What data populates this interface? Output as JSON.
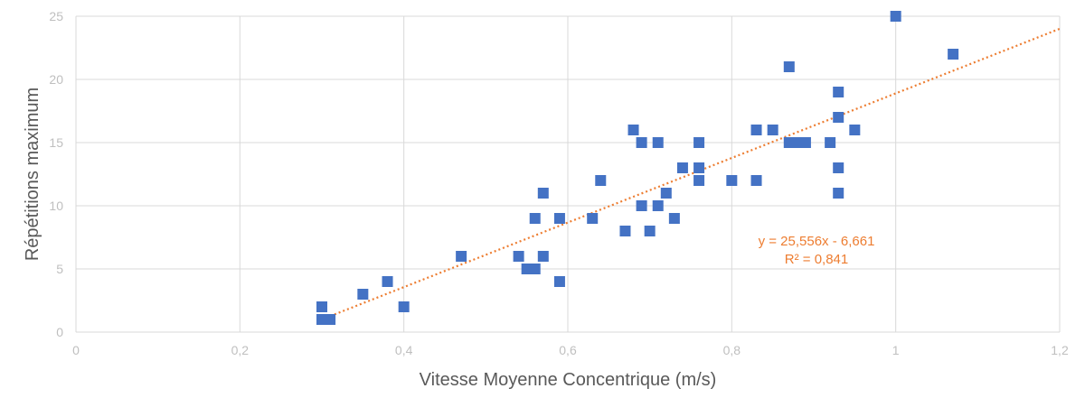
{
  "chart_data": {
    "type": "scatter",
    "title": "",
    "xlabel": "Vitesse Moyenne Concentrique (m/s)",
    "ylabel": "Répétitions maximum",
    "xlim": [
      0,
      1.2
    ],
    "ylim": [
      0,
      25
    ],
    "x_ticks": [
      {
        "value": 0,
        "label": "0"
      },
      {
        "value": 0.2,
        "label": "0,2"
      },
      {
        "value": 0.4,
        "label": "0,4"
      },
      {
        "value": 0.6,
        "label": "0,6"
      },
      {
        "value": 0.8,
        "label": "0,8"
      },
      {
        "value": 1.0,
        "label": "1"
      },
      {
        "value": 1.2,
        "label": "1,2"
      }
    ],
    "y_ticks": [
      {
        "value": 0,
        "label": "0"
      },
      {
        "value": 5,
        "label": "5"
      },
      {
        "value": 10,
        "label": "10"
      },
      {
        "value": 15,
        "label": "15"
      },
      {
        "value": 20,
        "label": "20"
      },
      {
        "value": 25,
        "label": "25"
      }
    ],
    "grid": true,
    "marker_color": "#4472c4",
    "trendline_color": "#ed7d31",
    "series": [
      {
        "points": [
          [
            0.3,
            2
          ],
          [
            0.3,
            1
          ],
          [
            0.31,
            1
          ],
          [
            0.35,
            3
          ],
          [
            0.38,
            4
          ],
          [
            0.4,
            2
          ],
          [
            0.47,
            6
          ],
          [
            0.54,
            6
          ],
          [
            0.55,
            5
          ],
          [
            0.56,
            5
          ],
          [
            0.56,
            9
          ],
          [
            0.57,
            11
          ],
          [
            0.57,
            6
          ],
          [
            0.59,
            9
          ],
          [
            0.59,
            4
          ],
          [
            0.63,
            9
          ],
          [
            0.64,
            12
          ],
          [
            0.67,
            8
          ],
          [
            0.68,
            16
          ],
          [
            0.69,
            15
          ],
          [
            0.69,
            10
          ],
          [
            0.7,
            8
          ],
          [
            0.71,
            15
          ],
          [
            0.71,
            10
          ],
          [
            0.72,
            11
          ],
          [
            0.73,
            9
          ],
          [
            0.74,
            13
          ],
          [
            0.76,
            15
          ],
          [
            0.76,
            13
          ],
          [
            0.76,
            12
          ],
          [
            0.8,
            12
          ],
          [
            0.83,
            16
          ],
          [
            0.83,
            12
          ],
          [
            0.85,
            16
          ],
          [
            0.87,
            21
          ],
          [
            0.87,
            15
          ],
          [
            0.88,
            15
          ],
          [
            0.89,
            15
          ],
          [
            0.92,
            15
          ],
          [
            0.93,
            19
          ],
          [
            0.93,
            17
          ],
          [
            0.93,
            13
          ],
          [
            0.93,
            11
          ],
          [
            0.95,
            16
          ],
          [
            1.0,
            25
          ],
          [
            1.07,
            22
          ]
        ]
      }
    ],
    "trendline": {
      "type": "linear",
      "slope": 25.556,
      "intercept": -6.661,
      "x_start": 0.3,
      "x_end": 1.2,
      "equation_label": "y = 25,556x - 6,661",
      "r2_label": "R² = 0,841"
    }
  }
}
